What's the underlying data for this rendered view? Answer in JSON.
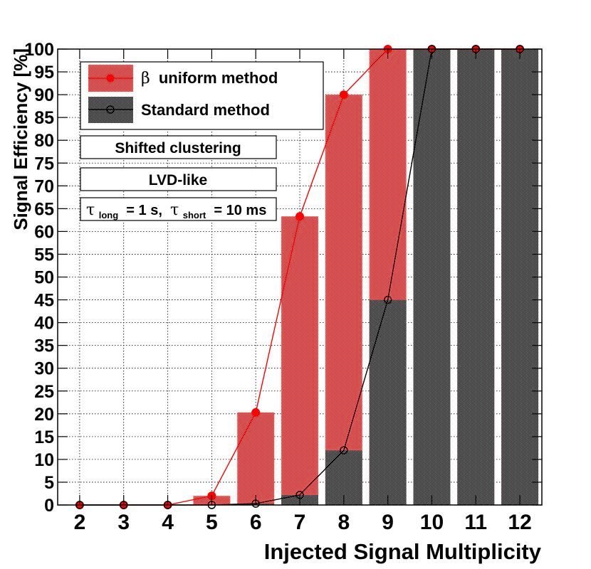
{
  "chart_data": {
    "type": "bar",
    "xlabel": "Injected Signal Multiplicity",
    "ylabel": "Signal Efficiency [%]",
    "xlim": [
      1.5,
      12.5
    ],
    "ylim": [
      0,
      100
    ],
    "x": [
      2,
      3,
      4,
      5,
      6,
      7,
      8,
      9,
      10,
      11,
      12
    ],
    "x_tick_labels": [
      "2",
      "3",
      "4",
      "5",
      "6",
      "7",
      "8",
      "9",
      "10",
      "11",
      "12"
    ],
    "y_ticks": [
      0,
      5,
      10,
      15,
      20,
      25,
      30,
      35,
      40,
      45,
      50,
      55,
      60,
      65,
      70,
      75,
      80,
      85,
      90,
      95,
      100
    ],
    "y_tick_labels": [
      "0",
      "5",
      "10",
      "15",
      "20",
      "25",
      "30",
      "35",
      "40",
      "45",
      "50",
      "55",
      "60",
      "65",
      "70",
      "75",
      "80",
      "85",
      "90",
      "95",
      "100"
    ],
    "grid": true,
    "legend_position": "top-left",
    "series": [
      {
        "name": "β uniform method",
        "legend_symbol": "β",
        "legend_text": "uniform method",
        "style": "bars-with-line",
        "marker": "filled-circle",
        "color": "#ff0000",
        "fill_color": "#f05050",
        "values": [
          0,
          0,
          0,
          2,
          20.3,
          63.3,
          90,
          100,
          100,
          100,
          100
        ]
      },
      {
        "name": "Standard method",
        "style": "bars-with-line",
        "marker": "open-circle",
        "color": "#000000",
        "fill_color": "#303030",
        "values": [
          0,
          0,
          0,
          0,
          0.3,
          2.2,
          12,
          45,
          100,
          100,
          100
        ]
      }
    ],
    "annotations": [
      {
        "id": "clustering",
        "text": "Shifted clustering"
      },
      {
        "id": "detector",
        "text": "LVD-like"
      },
      {
        "id": "tau",
        "parts": [
          {
            "text": "τ",
            "role": "symbol"
          },
          {
            "text": "long",
            "role": "subscript"
          },
          {
            "text": " = 1 s, ",
            "role": "normal"
          },
          {
            "text": "τ",
            "role": "symbol"
          },
          {
            "text": "short",
            "role": "subscript"
          },
          {
            "text": " = 10 ms",
            "role": "normal"
          }
        ]
      }
    ]
  }
}
